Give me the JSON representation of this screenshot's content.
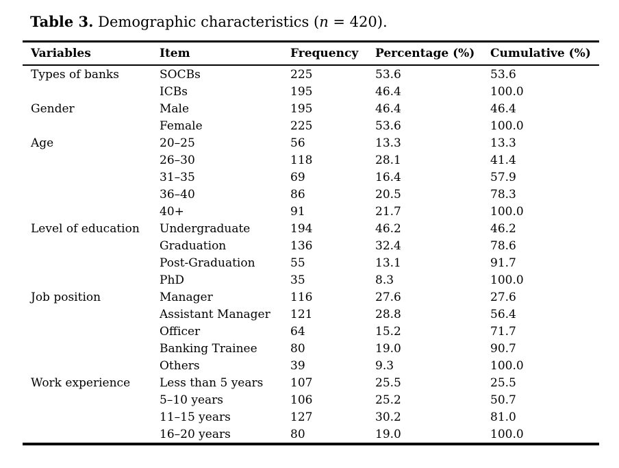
{
  "title": {
    "bold": "Table 3.",
    "normal_1": " Demographic characteristics (",
    "italic": "n",
    "normal_2": " = 420)."
  },
  "table": {
    "headers": [
      "Variables",
      "Item",
      "Frequency",
      "Percentage (%)",
      "Cumulative (%)"
    ],
    "rows": [
      {
        "variable": "Types of banks",
        "item": "SOCBs",
        "frequency": "225",
        "percentage": "53.6",
        "cumulative": "53.6"
      },
      {
        "variable": "",
        "item": "ICBs",
        "frequency": "195",
        "percentage": "46.4",
        "cumulative": "100.0"
      },
      {
        "variable": "Gender",
        "item": "Male",
        "frequency": "195",
        "percentage": "46.4",
        "cumulative": "46.4"
      },
      {
        "variable": "",
        "item": "Female",
        "frequency": "225",
        "percentage": "53.6",
        "cumulative": "100.0"
      },
      {
        "variable": "Age",
        "item": "20–25",
        "frequency": "56",
        "percentage": "13.3",
        "cumulative": "13.3"
      },
      {
        "variable": "",
        "item": "26–30",
        "frequency": "118",
        "percentage": "28.1",
        "cumulative": "41.4"
      },
      {
        "variable": "",
        "item": "31–35",
        "frequency": "69",
        "percentage": "16.4",
        "cumulative": "57.9"
      },
      {
        "variable": "",
        "item": "36–40",
        "frequency": "86",
        "percentage": "20.5",
        "cumulative": "78.3"
      },
      {
        "variable": "",
        "item": "40+",
        "frequency": "91",
        "percentage": "21.7",
        "cumulative": "100.0"
      },
      {
        "variable": "Level of education",
        "item": "Undergraduate",
        "frequency": "194",
        "percentage": "46.2",
        "cumulative": "46.2"
      },
      {
        "variable": "",
        "item": "Graduation",
        "frequency": "136",
        "percentage": "32.4",
        "cumulative": "78.6"
      },
      {
        "variable": "",
        "item": "Post-Graduation",
        "frequency": "55",
        "percentage": "13.1",
        "cumulative": "91.7"
      },
      {
        "variable": "",
        "item": "PhD",
        "frequency": "35",
        "percentage": "8.3",
        "cumulative": "100.0"
      },
      {
        "variable": "Job position",
        "item": "Manager",
        "frequency": "116",
        "percentage": "27.6",
        "cumulative": "27.6"
      },
      {
        "variable": "",
        "item": "Assistant Manager",
        "frequency": "121",
        "percentage": "28.8",
        "cumulative": "56.4"
      },
      {
        "variable": "",
        "item": "Officer",
        "frequency": "64",
        "percentage": "15.2",
        "cumulative": "71.7"
      },
      {
        "variable": "",
        "item": "Banking Trainee",
        "frequency": "80",
        "percentage": "19.0",
        "cumulative": "90.7"
      },
      {
        "variable": "",
        "item": "Others",
        "frequency": "39",
        "percentage": "9.3",
        "cumulative": "100.0"
      },
      {
        "variable": "Work experience",
        "item": "Less than 5 years",
        "frequency": "107",
        "percentage": "25.5",
        "cumulative": "25.5"
      },
      {
        "variable": "",
        "item": "5–10 years",
        "frequency": "106",
        "percentage": "25.2",
        "cumulative": "50.7"
      },
      {
        "variable": "",
        "item": "11–15 years",
        "frequency": "127",
        "percentage": "30.2",
        "cumulative": "81.0"
      },
      {
        "variable": "",
        "item": "16–20 years",
        "frequency": "80",
        "percentage": "19.0",
        "cumulative": "100.0"
      }
    ]
  },
  "colors": {
    "text": "#000000",
    "background": "#ffffff",
    "rule": "#000000"
  }
}
